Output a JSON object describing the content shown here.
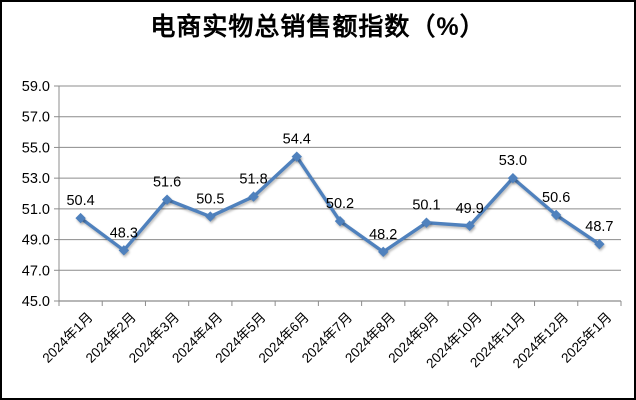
{
  "chart_data": {
    "type": "line",
    "title": "电商实物总销售额指数（%）",
    "categories": [
      "2024年1月",
      "2024年2月",
      "2024年3月",
      "2024年4月",
      "2024年5月",
      "2024年6月",
      "2024年7月",
      "2024年8月",
      "2024年9月",
      "2024年10月",
      "2024年11月",
      "2024年12月",
      "2025年1月"
    ],
    "values": [
      50.4,
      48.3,
      51.6,
      50.5,
      51.8,
      54.4,
      50.2,
      48.2,
      50.1,
      49.9,
      53.0,
      50.6,
      48.7
    ],
    "data_labels": [
      "50.4",
      "48.3",
      "51.6",
      "50.5",
      "51.8",
      "54.4",
      "50.2",
      "48.2",
      "50.1",
      "49.9",
      "53.0",
      "50.6",
      "48.7"
    ],
    "ylim": [
      45.0,
      59.0
    ],
    "y_ticks": [
      "45.0",
      "47.0",
      "49.0",
      "51.0",
      "53.0",
      "55.0",
      "57.0",
      "59.0"
    ],
    "xlabel": "",
    "ylabel": "",
    "grid": "horizontal",
    "legend": "none",
    "marker": "diamond",
    "colors": {
      "series": "#4F81BD",
      "gridline": "#8C8C8C",
      "axis": "#8C8C8C",
      "text": "#000000",
      "background": "#FFFFFF",
      "border": "#000000"
    }
  }
}
